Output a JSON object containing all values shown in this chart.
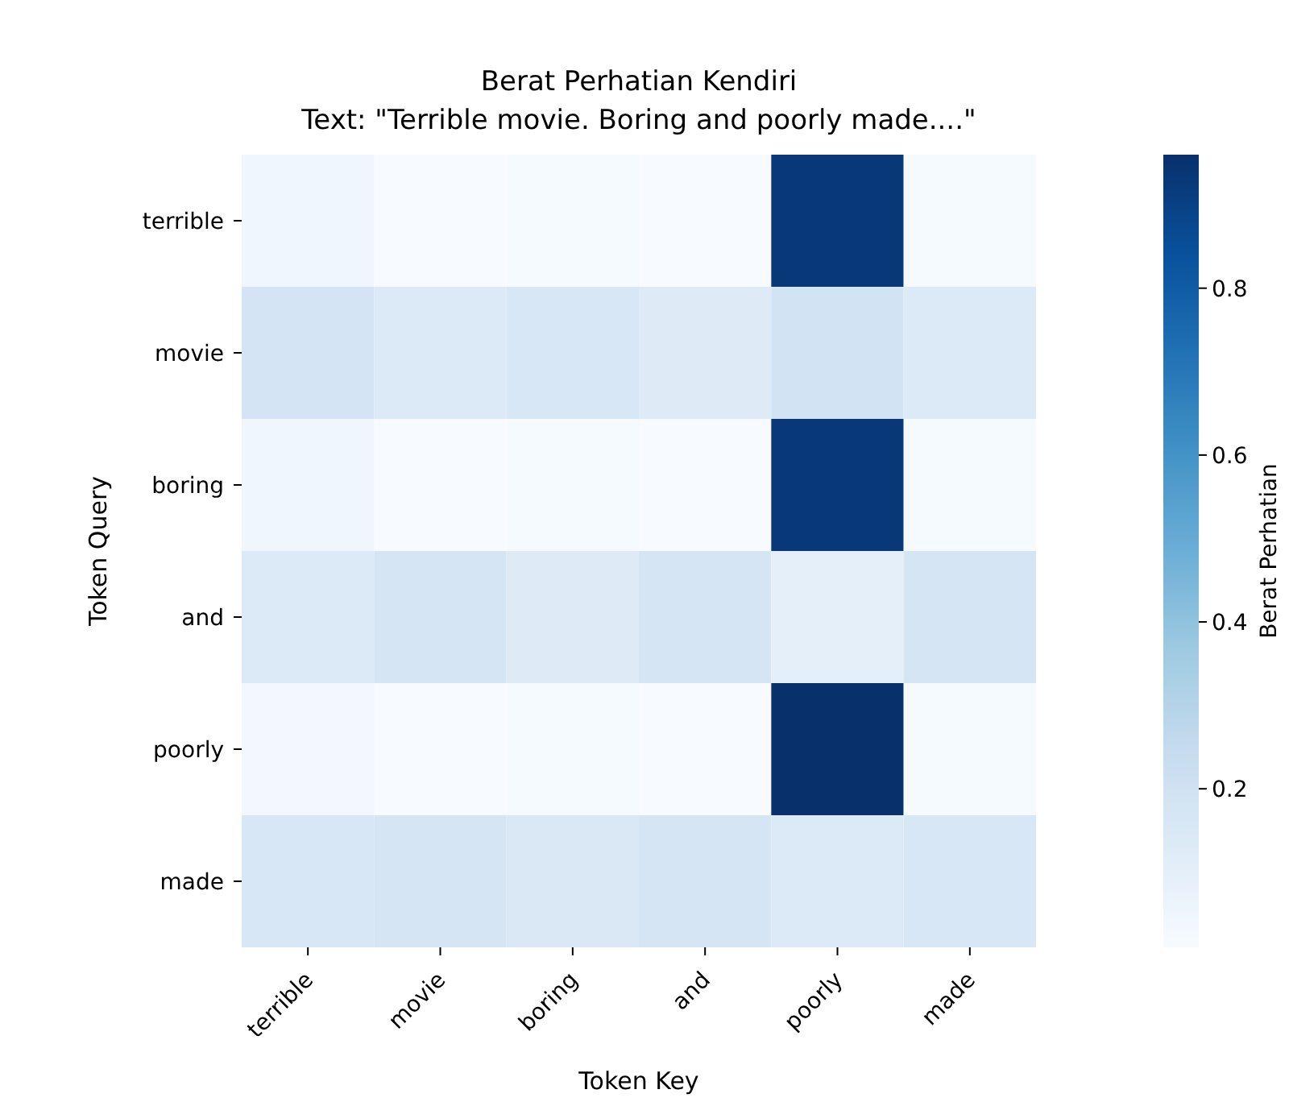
{
  "chart_data": {
    "type": "heatmap",
    "title": "Berat Perhatian Kendiri",
    "subtitle": "Text: \"Terrible movie. Boring and poorly made....\"",
    "xlabel": "Token Key",
    "ylabel": "Token Query",
    "clabel": "Berat Perhatian",
    "categories": [
      "terrible",
      "movie",
      "boring",
      "and",
      "poorly",
      "made"
    ],
    "y_categories": [
      "terrible",
      "movie",
      "boring",
      "and",
      "poorly",
      "made"
    ],
    "cells": [
      [
        0.05,
        0.01,
        0.02,
        0.01,
        0.93,
        0.02
      ],
      [
        0.18,
        0.14,
        0.16,
        0.13,
        0.19,
        0.14
      ],
      [
        0.05,
        0.01,
        0.02,
        0.01,
        0.93,
        0.02
      ],
      [
        0.14,
        0.17,
        0.13,
        0.17,
        0.1,
        0.17
      ],
      [
        0.03,
        0.01,
        0.02,
        0.01,
        0.96,
        0.02
      ],
      [
        0.16,
        0.17,
        0.15,
        0.17,
        0.14,
        0.16
      ]
    ],
    "clim": [
      0.01,
      0.96
    ],
    "cticks": [
      0.2,
      0.4,
      0.6,
      0.8
    ]
  }
}
